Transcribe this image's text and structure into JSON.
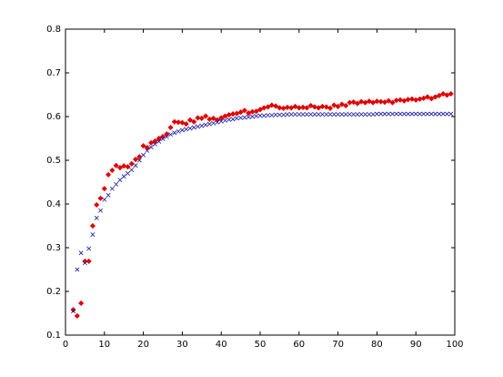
{
  "chart_data": {
    "type": "scatter",
    "x": [
      2,
      3,
      4,
      5,
      6,
      7,
      8,
      9,
      10,
      11,
      12,
      13,
      14,
      15,
      16,
      17,
      18,
      19,
      20,
      21,
      22,
      23,
      24,
      25,
      26,
      27,
      28,
      29,
      30,
      31,
      32,
      33,
      34,
      35,
      36,
      37,
      38,
      39,
      40,
      41,
      42,
      43,
      44,
      45,
      46,
      47,
      48,
      49,
      50,
      51,
      52,
      53,
      54,
      55,
      56,
      57,
      58,
      59,
      60,
      61,
      62,
      63,
      64,
      65,
      66,
      67,
      68,
      69,
      70,
      71,
      72,
      73,
      74,
      75,
      76,
      77,
      78,
      79,
      80,
      81,
      82,
      83,
      84,
      85,
      86,
      87,
      88,
      89,
      90,
      91,
      92,
      93,
      94,
      95,
      96,
      97,
      98,
      99
    ],
    "series": [
      {
        "color": "#e00000",
        "marker": "diamond",
        "values": [
          0.158,
          0.144,
          0.173,
          0.269,
          0.269,
          0.35,
          0.398,
          0.413,
          0.435,
          0.467,
          0.477,
          0.488,
          0.483,
          0.487,
          0.485,
          0.492,
          0.502,
          0.508,
          0.533,
          0.529,
          0.54,
          0.544,
          0.55,
          0.554,
          0.56,
          0.575,
          0.588,
          0.587,
          0.586,
          0.583,
          0.592,
          0.588,
          0.597,
          0.596,
          0.601,
          0.594,
          0.596,
          0.592,
          0.597,
          0.601,
          0.604,
          0.606,
          0.607,
          0.61,
          0.614,
          0.608,
          0.611,
          0.612,
          0.616,
          0.62,
          0.622,
          0.626,
          0.624,
          0.62,
          0.619,
          0.621,
          0.62,
          0.623,
          0.62,
          0.621,
          0.62,
          0.625,
          0.622,
          0.62,
          0.623,
          0.622,
          0.619,
          0.626,
          0.623,
          0.628,
          0.625,
          0.632,
          0.633,
          0.63,
          0.634,
          0.632,
          0.635,
          0.632,
          0.635,
          0.634,
          0.633,
          0.636,
          0.632,
          0.637,
          0.638,
          0.636,
          0.639,
          0.64,
          0.638,
          0.64,
          0.642,
          0.645,
          0.641,
          0.645,
          0.648,
          0.652,
          0.649,
          0.652
        ]
      },
      {
        "color": "#1a1aa0",
        "marker": "x",
        "values": [
          0.155,
          0.25,
          0.288,
          0.265,
          0.298,
          0.33,
          0.368,
          0.385,
          0.41,
          0.42,
          0.435,
          0.445,
          0.455,
          0.463,
          0.47,
          0.478,
          0.488,
          0.5,
          0.512,
          0.522,
          0.53,
          0.537,
          0.543,
          0.549,
          0.554,
          0.559,
          0.563,
          0.566,
          0.569,
          0.571,
          0.573,
          0.575,
          0.577,
          0.579,
          0.581,
          0.583,
          0.585,
          0.587,
          0.589,
          0.591,
          0.593,
          0.594,
          0.596,
          0.597,
          0.598,
          0.599,
          0.6,
          0.601,
          0.602,
          0.602,
          0.603,
          0.603,
          0.604,
          0.604,
          0.604,
          0.605,
          0.605,
          0.605,
          0.605,
          0.605,
          0.605,
          0.605,
          0.605,
          0.605,
          0.605,
          0.605,
          0.605,
          0.605,
          0.605,
          0.605,
          0.605,
          0.605,
          0.605,
          0.605,
          0.605,
          0.605,
          0.605,
          0.605,
          0.606,
          0.606,
          0.606,
          0.606,
          0.606,
          0.606,
          0.606,
          0.606,
          0.606,
          0.606,
          0.606,
          0.606,
          0.606,
          0.606,
          0.606,
          0.606,
          0.606,
          0.606,
          0.606,
          0.606
        ]
      }
    ],
    "xlim": [
      0,
      100
    ],
    "xticks": [
      0,
      10,
      20,
      30,
      40,
      50,
      60,
      70,
      80,
      90,
      100
    ],
    "ylim": [
      0.1,
      0.8
    ],
    "yticks": [
      0.1,
      0.2,
      0.3,
      0.4,
      0.5,
      0.6,
      0.7,
      0.8
    ]
  }
}
